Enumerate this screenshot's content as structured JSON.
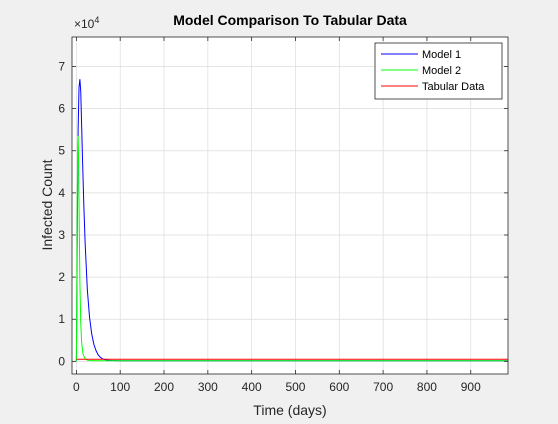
{
  "chart_data": {
    "type": "line",
    "title": "Model Comparison To Tabular Data",
    "xlabel": "Time (days)",
    "ylabel": "Infected Count",
    "exponent_label": "×10",
    "exponent_power": "4",
    "xlim": [
      -10,
      985
    ],
    "ylim": [
      -3000,
      77000
    ],
    "x_ticks": [
      0,
      100,
      200,
      300,
      400,
      500,
      600,
      700,
      800,
      900
    ],
    "y_ticks": [
      0,
      10000,
      20000,
      30000,
      40000,
      50000,
      60000,
      70000
    ],
    "y_tick_labels": [
      "0",
      "1",
      "2",
      "3",
      "4",
      "5",
      "6",
      "7"
    ],
    "grid": true,
    "legend": "top-right",
    "series": [
      {
        "name": "Model 1",
        "color": "#0000ff",
        "x": [
          0,
          1,
          2,
          4,
          6,
          8,
          10,
          12,
          14,
          17,
          20,
          25,
          30,
          35,
          40,
          45,
          50,
          55,
          60,
          70,
          80,
          100,
          150,
          300,
          500,
          700,
          985
        ],
        "y": [
          0,
          12000,
          30000,
          55000,
          65000,
          67000,
          64000,
          56000,
          48000,
          37000,
          28000,
          17000,
          10500,
          6500,
          4000,
          2500,
          1500,
          950,
          600,
          300,
          200,
          150,
          150,
          150,
          150,
          150,
          150
        ]
      },
      {
        "name": "Model 2",
        "color": "#00ff00",
        "x": [
          0,
          1,
          2,
          3,
          4,
          5,
          6,
          7,
          8,
          10,
          12,
          15,
          20,
          25,
          30,
          40,
          50,
          100,
          300,
          600,
          985
        ],
        "y": [
          0,
          15000,
          38000,
          52000,
          53500,
          48000,
          38000,
          28000,
          19000,
          9000,
          4500,
          1800,
          600,
          300,
          200,
          150,
          150,
          150,
          150,
          150,
          150
        ]
      },
      {
        "name": "Tabular Data",
        "color": "#ff0000",
        "x": [
          0,
          50,
          100,
          200,
          300,
          400,
          500,
          600,
          700,
          800,
          900,
          985
        ],
        "y": [
          500,
          500,
          500,
          500,
          500,
          500,
          500,
          500,
          500,
          500,
          500,
          500
        ]
      }
    ]
  }
}
